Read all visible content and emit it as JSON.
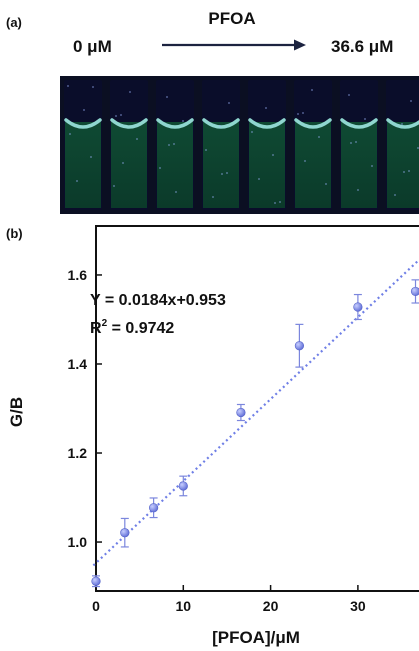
{
  "panel_a": {
    "label": "(a)",
    "start_label": "0 μM",
    "arrow_label": "PFOA",
    "end_label": "36.6 μM",
    "cuvette_count": 8,
    "colors": {
      "liquid": "#0c3f2c",
      "meniscus": "#8fd6cf",
      "headspace": "#0a0d2a",
      "arrow": "#1c2340"
    }
  },
  "panel_b": {
    "label": "(b)",
    "equation": "Y = 0.0184x+0.953",
    "r2_prefix": "R",
    "r2_sup": "2",
    "r2_value": " = 0.9742"
  },
  "chart_data": {
    "type": "scatter",
    "xlabel": "[PFOA]/μM",
    "ylabel": "G/B",
    "xlim": [
      0,
      37
    ],
    "ylim": [
      0.89,
      1.71
    ],
    "xticks": [
      0,
      10,
      20,
      30
    ],
    "yticks": [
      1.0,
      1.2,
      1.4,
      1.6
    ],
    "ytick_labels": [
      "1.0",
      "1.2",
      "1.4",
      "1.6"
    ],
    "x": [
      0,
      3.3,
      6.6,
      10,
      16.6,
      23.3,
      30,
      36.6
    ],
    "y": [
      0.912,
      1.021,
      1.077,
      1.126,
      1.291,
      1.441,
      1.528,
      1.563
    ],
    "err": [
      0.012,
      0.032,
      0.022,
      0.022,
      0.018,
      0.048,
      0.028,
      0.026
    ],
    "fit": {
      "slope": 0.0184,
      "intercept": 0.953,
      "style": "dotted"
    },
    "colors": {
      "marker": "#7b86dd",
      "fit_line": "#6f7fe6",
      "error_bar": "#7b86dd"
    }
  }
}
